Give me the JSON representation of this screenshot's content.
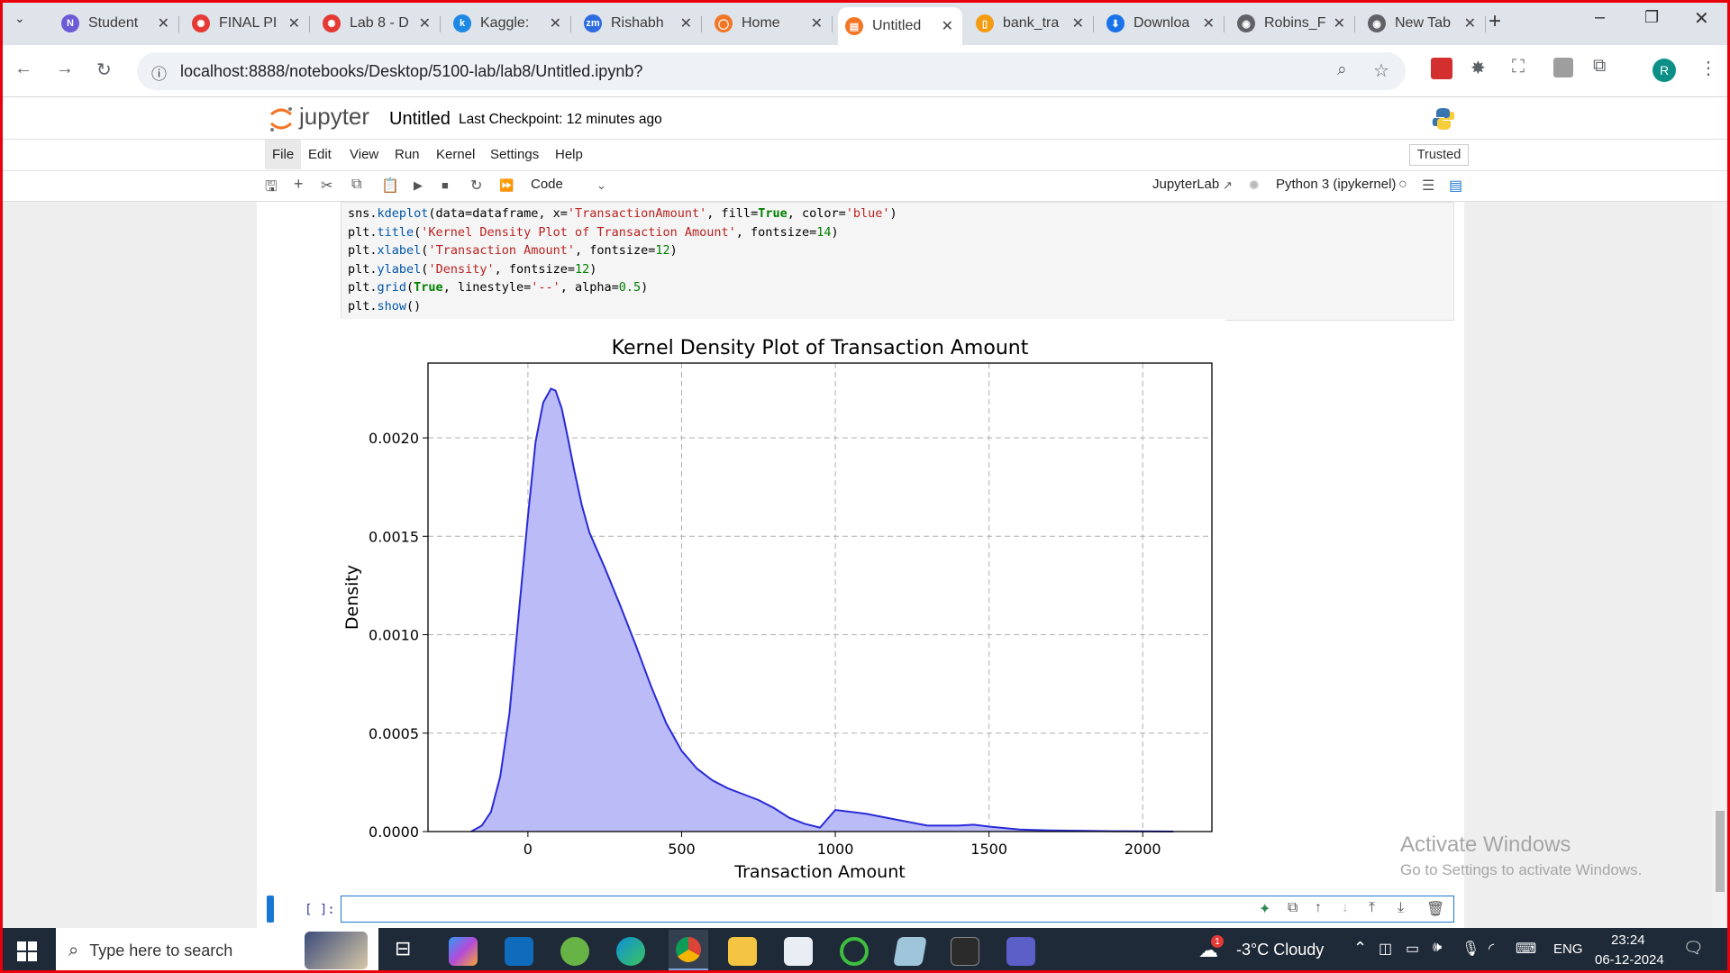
{
  "browser": {
    "tabs": [
      {
        "label": "Student",
        "x": 60,
        "color": "#6b5bd6",
        "glyph": "N"
      },
      {
        "label": "FINAL PI",
        "x": 205,
        "color": "#e53935",
        "glyph": "✺"
      },
      {
        "label": "Lab 8 - D",
        "x": 350,
        "color": "#e53935",
        "glyph": "✺"
      },
      {
        "label": "Kaggle:",
        "x": 495,
        "color": "#1e88e5",
        "glyph": "k"
      },
      {
        "label": "Rishabh",
        "x": 640,
        "color": "#2d6cdf",
        "glyph": "zm"
      },
      {
        "label": "Home",
        "x": 785,
        "color": "#f37626",
        "glyph": "◯"
      },
      {
        "label": "Untitled",
        "x": 930,
        "color": "#f37626",
        "glyph": "▤",
        "active": true
      },
      {
        "label": "bank_tra",
        "x": 1075,
        "color": "#f39c12",
        "glyph": "▯"
      },
      {
        "label": "Downloa",
        "x": 1220,
        "color": "#1a73e8",
        "glyph": "⬇"
      },
      {
        "label": "Robins_F",
        "x": 1365,
        "color": "#5f6368",
        "glyph": "◉"
      },
      {
        "label": "New Tab",
        "x": 1510,
        "color": "#5f6368",
        "glyph": "◉"
      }
    ],
    "url": "localhost:8888/notebooks/Desktop/5100-lab/lab8/Untitled.ipynb?",
    "profile_initial": "R"
  },
  "jupyter": {
    "logo_text": "jupyter",
    "notebook_name": "Untitled",
    "checkpoint": "Last Checkpoint: 12 minutes ago",
    "trusted": "Trusted",
    "menus": [
      "File",
      "Edit",
      "View",
      "Run",
      "Kernel",
      "Settings",
      "Help"
    ],
    "cell_type": "Code",
    "jupyterlab_link": "JupyterLab",
    "kernel": "Python 3 (ipykernel)",
    "empty_prompt": "[ ]:"
  },
  "code_lines": [
    "sns.kdeplot(data=dataframe, x='TransactionAmount', fill=True, color='blue')",
    "plt.title('Kernel Density Plot of Transaction Amount', fontsize=14)",
    "plt.xlabel('Transaction Amount', fontsize=12)",
    "plt.ylabel('Density', fontsize=12)",
    "plt.grid(True, linestyle='--', alpha=0.5)",
    "plt.show()"
  ],
  "chart_data": {
    "type": "area",
    "title": "Kernel Density Plot of Transaction Amount",
    "xlabel": "Transaction Amount",
    "ylabel": "Density",
    "xlim": [
      -325,
      2225
    ],
    "ylim": [
      0,
      0.00238
    ],
    "x_ticks": [
      0,
      500,
      1000,
      1500,
      2000
    ],
    "x_tick_labels": [
      "0",
      "500",
      "1000",
      "1500",
      "2000"
    ],
    "y_ticks": [
      0,
      0.0005,
      0.001,
      0.0015,
      0.002
    ],
    "y_tick_labels": [
      "0.0000",
      "0.0005",
      "0.0010",
      "0.0015",
      "0.0020"
    ],
    "grid": true,
    "fill_color": "#bbbbf8",
    "line_color": "#2a2ad8",
    "series": [
      {
        "x": [
          -185,
          -150,
          -120,
          -90,
          -60,
          -30,
          0,
          25,
          50,
          75,
          90,
          110,
          130,
          150,
          175,
          200,
          250,
          300,
          350,
          400,
          450,
          500,
          550,
          600,
          650,
          700,
          750,
          800,
          850,
          900,
          950,
          1000,
          1100,
          1200,
          1300,
          1400,
          1450,
          1500,
          1600,
          1700,
          1800,
          1900,
          2000,
          2100
        ],
        "y": [
          0,
          3e-05,
          0.0001,
          0.00028,
          0.0006,
          0.0011,
          0.0016,
          0.00198,
          0.00218,
          0.00225,
          0.00224,
          0.00215,
          0.002,
          0.00184,
          0.00166,
          0.00152,
          0.00134,
          0.00115,
          0.00095,
          0.00074,
          0.00055,
          0.00041,
          0.00032,
          0.00026,
          0.00022,
          0.00019,
          0.00016,
          0.00012,
          7e-05,
          4e-05,
          2e-05,
          0.00011,
          9e-05,
          6e-05,
          3e-05,
          3e-05,
          3.5e-05,
          2.5e-05,
          1e-05,
          6e-06,
          4e-06,
          2e-06,
          1e-06,
          0
        ]
      }
    ]
  },
  "watermark": {
    "line1": "Activate Windows",
    "line2": "Go to Settings to activate Windows."
  },
  "taskbar": {
    "search_placeholder": "Type here to search",
    "weather": "-3°C  Cloudy",
    "lang": "ENG",
    "time": "23:24",
    "date": "06-12-2024",
    "weather_badge": "1"
  }
}
